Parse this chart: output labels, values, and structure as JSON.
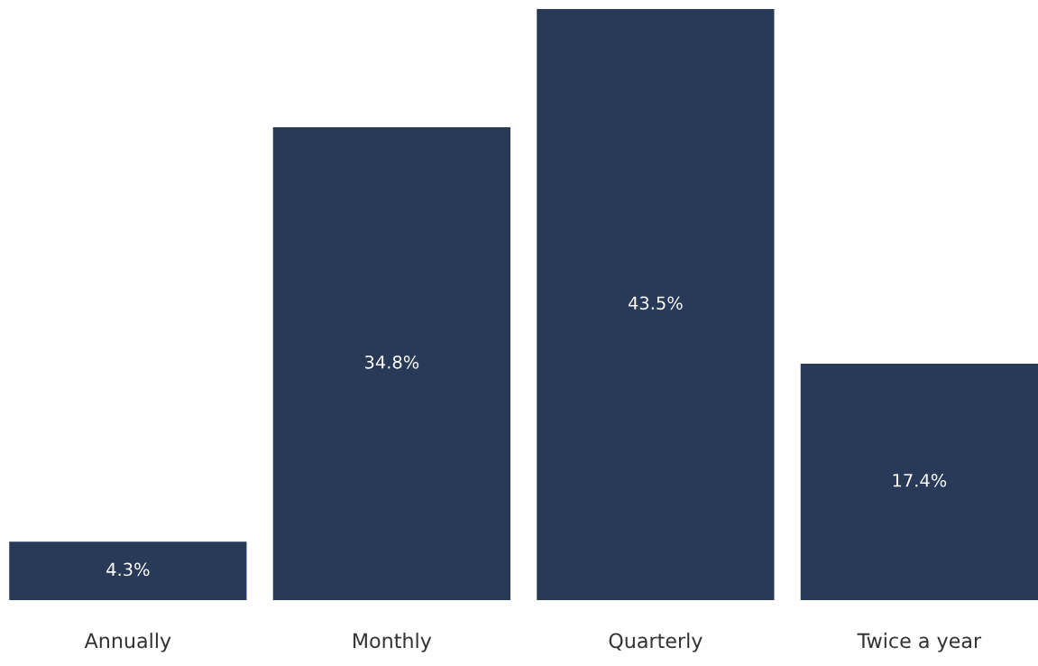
{
  "chart_data": {
    "type": "bar",
    "categories": [
      "Annually",
      "Monthly",
      "Quarterly",
      "Twice a year"
    ],
    "values": [
      4.3,
      34.8,
      43.5,
      17.4
    ],
    "color": "#283a58",
    "ylim": [
      0,
      43.5
    ],
    "value_labels": [
      "4.3%",
      "34.8%",
      "43.5%",
      "17.4%"
    ],
    "grid": false,
    "legend": false
  }
}
